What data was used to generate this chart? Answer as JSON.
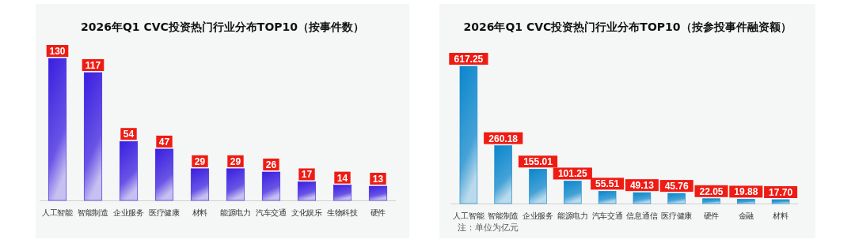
{
  "chart_data": [
    {
      "type": "bar",
      "title": "2026年Q1 CVC投资热门行业分布TOP10（按事件数）",
      "categories": [
        "人工智能",
        "智能制造",
        "企业服务",
        "医疗健康",
        "材料",
        "能源电力",
        "汽车交通",
        "文化娱乐",
        "生物科技",
        "硬件"
      ],
      "values": [
        130,
        117,
        54,
        47,
        29,
        29,
        26,
        17,
        14,
        13
      ],
      "color": "#3a1ee0",
      "data_labels": true
    },
    {
      "type": "bar",
      "title": "2026年Q1 CVC投资热门行业分布TOP10（按参投事件融资额）",
      "categories": [
        "人工智能",
        "智能制造",
        "企业服务",
        "能源电力",
        "汽车交通",
        "信息通信",
        "医疗健康",
        "硬件",
        "金融",
        "材料"
      ],
      "values": [
        617.25,
        260.18,
        155.01,
        101.25,
        55.51,
        49.13,
        45.76,
        22.05,
        19.88,
        17.7
      ],
      "value_labels": [
        "617.25",
        "260.18",
        "155.01",
        "101.25",
        "55.51",
        "49.13",
        "45.76",
        "22.05",
        "19.88",
        "17.70"
      ],
      "color": "#0a86cc",
      "annotations": [
        "注：单位为亿元"
      ]
    }
  ]
}
